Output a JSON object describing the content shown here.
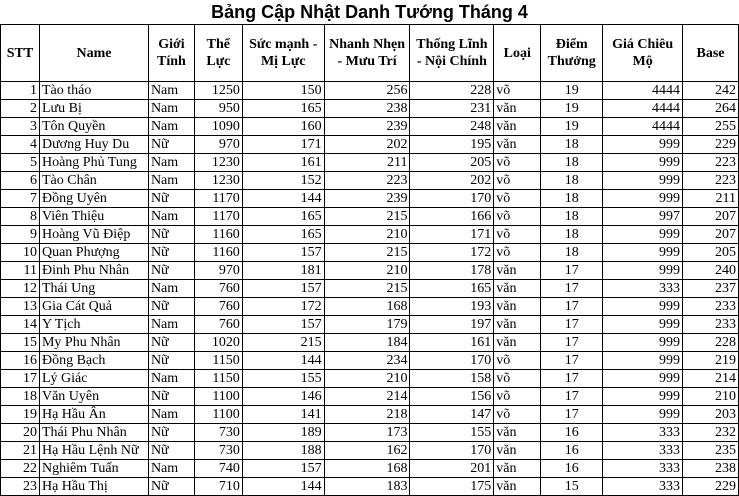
{
  "title": "Bảng Cập Nhật Danh Tướng Tháng 4",
  "headers": [
    "STT",
    "Name",
    "Giới Tính",
    "Thể Lực",
    "Sức mạnh - Mị Lực",
    "Nhanh Nhẹn - Mưu Trí",
    "Thống Lĩnh - Nội Chính",
    "Loại",
    "Điểm Thưởng",
    "Giá Chiêu Mộ",
    "Base"
  ],
  "rows": [
    [
      "1",
      "Tào tháo",
      "Nam",
      "1250",
      "150",
      "256",
      "228",
      "võ",
      "19",
      "4444",
      "242"
    ],
    [
      "2",
      "Lưu Bị",
      "Nam",
      "950",
      "165",
      "238",
      "231",
      "văn",
      "19",
      "4444",
      "264"
    ],
    [
      "3",
      "Tôn Quyền",
      "Nam",
      "1090",
      "160",
      "239",
      "248",
      "văn",
      "19",
      "4444",
      "255"
    ],
    [
      "4",
      "Dương Huy Du",
      "Nữ",
      "970",
      "171",
      "202",
      "195",
      "văn",
      "18",
      "999",
      "229"
    ],
    [
      "5",
      "Hoàng Phủ Tung",
      "Nam",
      "1230",
      "161",
      "211",
      "205",
      "võ",
      "18",
      "999",
      "223"
    ],
    [
      "6",
      "Tào Chân",
      "Nam",
      "1230",
      "152",
      "223",
      "202",
      "võ",
      "18",
      "999",
      "223"
    ],
    [
      "7",
      "Đồng Uyên",
      "Nữ",
      "1170",
      "144",
      "239",
      "170",
      "võ",
      "18",
      "999",
      "211"
    ],
    [
      "8",
      "Viên Thiệu",
      "Nam",
      "1170",
      "165",
      "215",
      "166",
      "võ",
      "18",
      "997",
      "207"
    ],
    [
      "9",
      "Hoàng Vũ Điệp",
      "Nữ",
      "1160",
      "165",
      "210",
      "171",
      "võ",
      "18",
      "999",
      "207"
    ],
    [
      "10",
      "Quan Phượng",
      "Nữ",
      "1160",
      "157",
      "215",
      "172",
      "võ",
      "18",
      "999",
      "205"
    ],
    [
      "11",
      "Đinh Phu Nhân",
      "Nữ",
      "970",
      "181",
      "210",
      "178",
      "văn",
      "17",
      "999",
      "240"
    ],
    [
      "12",
      "Thái Ung",
      "Nam",
      "760",
      "157",
      "215",
      "165",
      "văn",
      "17",
      "333",
      "237"
    ],
    [
      "13",
      "Gia Cát Quả",
      "Nữ",
      "760",
      "172",
      "168",
      "193",
      "văn",
      "17",
      "999",
      "233"
    ],
    [
      "14",
      "Y Tịch",
      "Nam",
      "760",
      "157",
      "179",
      "197",
      "văn",
      "17",
      "999",
      "233"
    ],
    [
      "15",
      "My Phu Nhân",
      "Nữ",
      "1020",
      "215",
      "184",
      "161",
      "văn",
      "17",
      "999",
      "228"
    ],
    [
      "16",
      "Đồng Bạch",
      "Nữ",
      "1150",
      "144",
      "234",
      "170",
      "võ",
      "17",
      "999",
      "219"
    ],
    [
      "17",
      "Lý Giác",
      "Nam",
      "1150",
      "155",
      "210",
      "158",
      "võ",
      "17",
      "999",
      "214"
    ],
    [
      "18",
      "Văn Uyên",
      "Nữ",
      "1100",
      "146",
      "214",
      "156",
      "võ",
      "17",
      "999",
      "210"
    ],
    [
      "19",
      "Hạ Hầu Ân",
      "Nam",
      "1100",
      "141",
      "218",
      "147",
      "võ",
      "17",
      "999",
      "203"
    ],
    [
      "20",
      "Thái Phu Nhân",
      "Nữ",
      "730",
      "189",
      "173",
      "155",
      "văn",
      "16",
      "333",
      "232"
    ],
    [
      "21",
      "Hạ Hầu Lệnh Nữ",
      "Nữ",
      "730",
      "188",
      "162",
      "170",
      "văn",
      "16",
      "333",
      "235"
    ],
    [
      "22",
      "Nghiêm Tuấn",
      "Nam",
      "740",
      "157",
      "168",
      "201",
      "văn",
      "16",
      "333",
      "238"
    ],
    [
      "23",
      "Hạ Hầu Thị",
      "Nữ",
      "710",
      "144",
      "183",
      "175",
      "văn",
      "15",
      "333",
      "229"
    ]
  ]
}
